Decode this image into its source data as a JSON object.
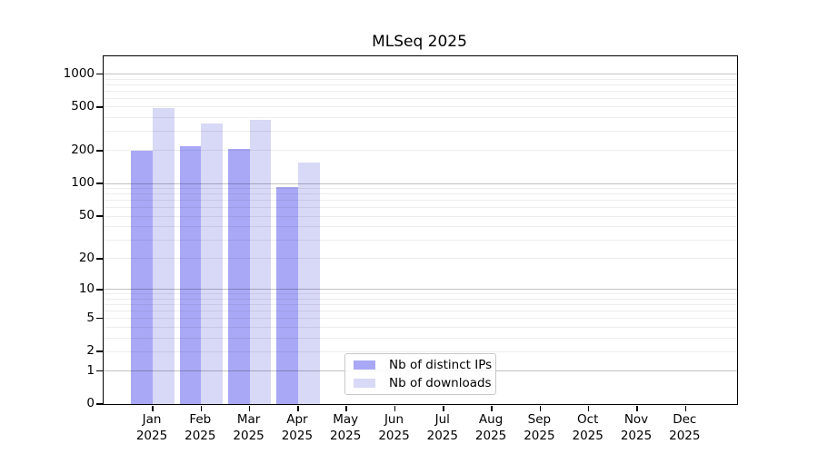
{
  "chart_data": {
    "type": "bar",
    "title": "MLSeq 2025",
    "categories": [
      "Jan",
      "Feb",
      "Mar",
      "Apr",
      "May",
      "Jun",
      "Jul",
      "Aug",
      "Sep",
      "Oct",
      "Nov",
      "Dec"
    ],
    "category_sublabel": "2025",
    "series": [
      {
        "name": "Nb of distinct IPs",
        "color": "#a8a8f6",
        "values": [
          199,
          220,
          206,
          93,
          null,
          null,
          null,
          null,
          null,
          null,
          null,
          null
        ]
      },
      {
        "name": "Nb of downloads",
        "color": "#d8d8f7",
        "values": [
          490,
          355,
          385,
          157,
          null,
          null,
          null,
          null,
          null,
          null,
          null,
          null
        ]
      }
    ],
    "y_scale": "log10(1+v)",
    "y_ticks": [
      0,
      1,
      2,
      5,
      10,
      20,
      50,
      100,
      200,
      500,
      1000
    ],
    "y_max": 1450,
    "grid_major_values": [
      1,
      10,
      100,
      1000
    ],
    "grid_minor_values": [
      2,
      3,
      4,
      5,
      6,
      7,
      8,
      9,
      20,
      30,
      40,
      50,
      60,
      70,
      80,
      90,
      200,
      300,
      400,
      500,
      600,
      700,
      800,
      900
    ],
    "legend_position": "inside-bottom-center",
    "xlabel": "",
    "ylabel": ""
  }
}
